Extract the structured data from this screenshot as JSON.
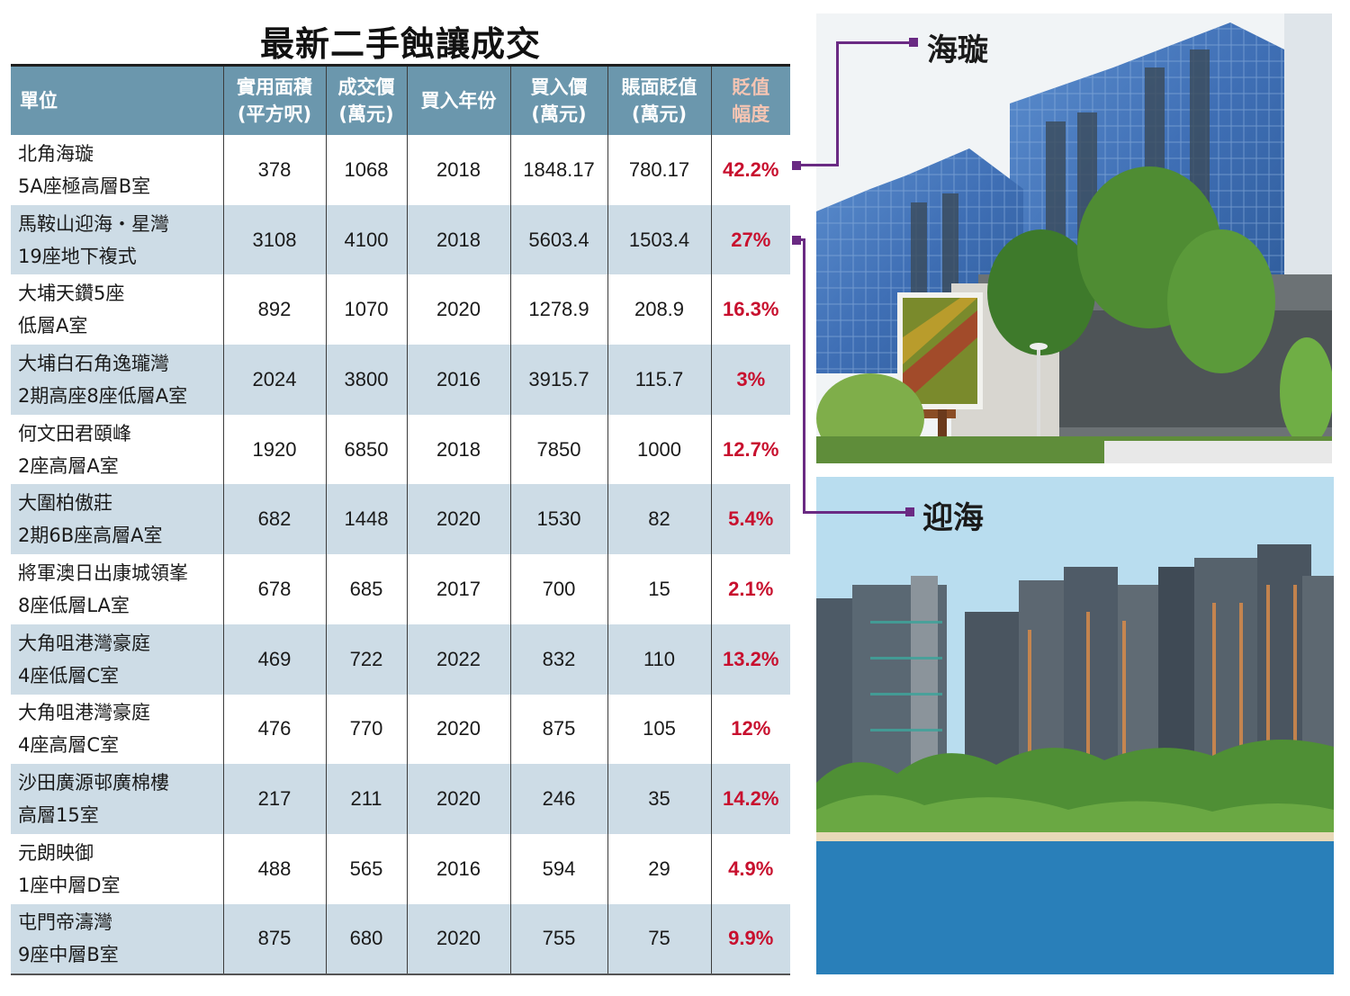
{
  "title": "最新二手蝕讓成交",
  "table": {
    "headers": [
      {
        "line1": "單位",
        "line2": ""
      },
      {
        "line1": "實用面積",
        "line2": "(平方呎)"
      },
      {
        "line1": "成交價",
        "line2": "(萬元)"
      },
      {
        "line1": "買入年份",
        "line2": ""
      },
      {
        "line1": "買入價",
        "line2": "(萬元)"
      },
      {
        "line1": "賬面貶值",
        "line2": "(萬元)"
      },
      {
        "line1": "貶值",
        "line2": "幅度"
      }
    ],
    "rows": [
      {
        "unit1": "北角海璇",
        "unit2": "5A座極高層B室",
        "area": "378",
        "price": "1068",
        "year": "2018",
        "buy": "1848.17",
        "loss": "780.17",
        "pct": "42.2%"
      },
      {
        "unit1": "馬鞍山迎海・星灣",
        "unit2": "19座地下複式",
        "area": "3108",
        "price": "4100",
        "year": "2018",
        "buy": "5603.4",
        "loss": "1503.4",
        "pct": "27%"
      },
      {
        "unit1": "大埔天鑽5座",
        "unit2": "低層A室",
        "area": "892",
        "price": "1070",
        "year": "2020",
        "buy": "1278.9",
        "loss": "208.9",
        "pct": "16.3%"
      },
      {
        "unit1": "大埔白石角逸瓏灣",
        "unit2": "2期高座8座低層A室",
        "area": "2024",
        "price": "3800",
        "year": "2016",
        "buy": "3915.7",
        "loss": "115.7",
        "pct": "3%"
      },
      {
        "unit1": "何文田君頤峰",
        "unit2": "2座高層A室",
        "area": "1920",
        "price": "6850",
        "year": "2018",
        "buy": "7850",
        "loss": "1000",
        "pct": "12.7%"
      },
      {
        "unit1": "大圍柏傲莊",
        "unit2": "2期6B座高層A室",
        "area": "682",
        "price": "1448",
        "year": "2020",
        "buy": "1530",
        "loss": "82",
        "pct": "5.4%"
      },
      {
        "unit1": "將軍澳日出康城領峯",
        "unit2": "8座低層LA室",
        "area": "678",
        "price": "685",
        "year": "2017",
        "buy": "700",
        "loss": "15",
        "pct": "2.1%"
      },
      {
        "unit1": "大角咀港灣豪庭",
        "unit2": "4座低層C室",
        "area": "469",
        "price": "722",
        "year": "2022",
        "buy": "832",
        "loss": "110",
        "pct": "13.2%"
      },
      {
        "unit1": "大角咀港灣豪庭",
        "unit2": "4座高層C室",
        "area": "476",
        "price": "770",
        "year": "2020",
        "buy": "875",
        "loss": "105",
        "pct": "12%"
      },
      {
        "unit1": "沙田廣源邨廣棉樓",
        "unit2": "高層15室",
        "area": "217",
        "price": "211",
        "year": "2020",
        "buy": "246",
        "loss": "35",
        "pct": "14.2%"
      },
      {
        "unit1": "元朗映御",
        "unit2": "1座中層D室",
        "area": "488",
        "price": "565",
        "year": "2016",
        "buy": "594",
        "loss": "29",
        "pct": "4.9%"
      },
      {
        "unit1": "屯門帝濤灣",
        "unit2": "9座中層B室",
        "area": "875",
        "price": "680",
        "year": "2020",
        "buy": "755",
        "loss": "75",
        "pct": "9.9%"
      }
    ]
  },
  "photos": {
    "top": {
      "caption": "海璇"
    },
    "bottom": {
      "caption": "迎海"
    }
  },
  "colors": {
    "header_bg": "#6b97ad",
    "row_alt_bg": "#cddce6",
    "pct_red": "#c8102e",
    "connector_purple": "#6a2a83",
    "header_peach": "#f6c5b3"
  }
}
